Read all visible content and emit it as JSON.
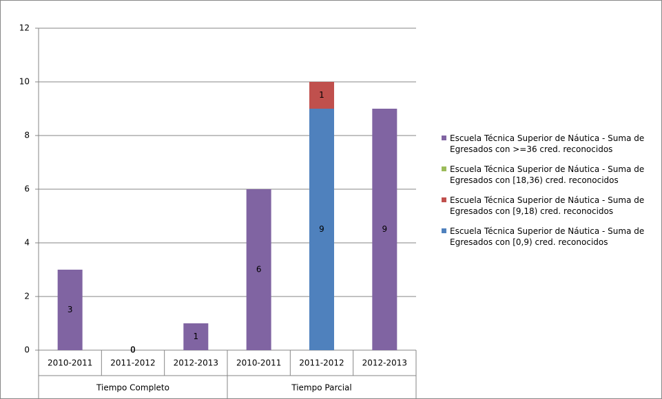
{
  "chart_data": {
    "type": "bar",
    "stacked": true,
    "categories": [
      "2010-2011",
      "2011-2012",
      "2012-2013",
      "2010-2011",
      "2011-2012",
      "2012-2013"
    ],
    "groups": [
      {
        "label": "Tiempo Completo",
        "span": 3
      },
      {
        "label": "Tiempo Parcial",
        "span": 3
      }
    ],
    "series": [
      {
        "name": "Escuela Técnica Superior de Náutica - Suma de Egresados con >=36 cred. reconocidos",
        "color": "#8064a2",
        "values": [
          3,
          0,
          1,
          6,
          null,
          9
        ]
      },
      {
        "name": "Escuela Técnica Superior de Náutica - Suma de Egresados con [18,36) cred. reconocidos",
        "color": "#9bbb59",
        "values": [
          null,
          0,
          null,
          null,
          null,
          null
        ]
      },
      {
        "name": "Escuela Técnica Superior de Náutica - Suma de Egresados con [9,18) cred. reconocidos",
        "color": "#c0504d",
        "values": [
          null,
          0,
          null,
          null,
          1,
          null
        ]
      },
      {
        "name": "Escuela Técnica Superior de Náutica - Suma de Egresados con [0,9) cred. reconocidos",
        "color": "#4f81bd",
        "values": [
          null,
          0,
          null,
          null,
          9,
          null
        ]
      }
    ],
    "ylim": [
      0,
      12
    ],
    "yticks": [
      0,
      2,
      4,
      6,
      8,
      10,
      12
    ],
    "grid": true,
    "legend": "right"
  }
}
